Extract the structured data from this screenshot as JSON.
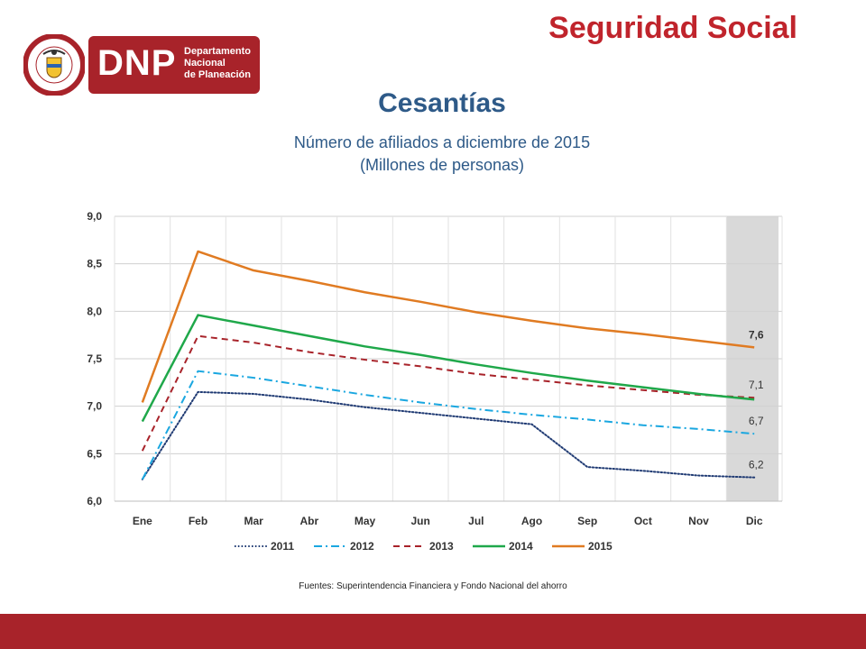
{
  "header": {
    "title": "Seguridad Social"
  },
  "logo": {
    "seal_text": "REPÚBLICA DE COLOMBIA",
    "acronym": "DNP",
    "name_lines": [
      "Departamento",
      "Nacional",
      "de Planeación"
    ]
  },
  "source": "Fuentes: Superintendencia Financiera y Fondo Nacional del ahorro",
  "colors": {
    "brand_red": "#a8232a",
    "title_blue": "#2e5a88"
  },
  "chart_data": {
    "type": "line",
    "title": "Cesantías",
    "subtitle_lines": [
      "Número de afiliados a diciembre de 2015",
      "(Millones de personas)"
    ],
    "xlabel": "",
    "ylabel": "",
    "categories": [
      "Ene",
      "Feb",
      "Mar",
      "Abr",
      "May",
      "Jun",
      "Jul",
      "Ago",
      "Sep",
      "Oct",
      "Nov",
      "Dic"
    ],
    "ylim": [
      6.0,
      9.0
    ],
    "yticks": [
      "6,0",
      "6,5",
      "7,0",
      "7,5",
      "8,0",
      "8,5",
      "9,0"
    ],
    "grid": true,
    "legend_position": "bottom",
    "highlight_category": "Dic",
    "series": [
      {
        "name": "2011",
        "color": "#1f3a73",
        "dash": "dotted",
        "values": [
          6.23,
          7.15,
          7.13,
          7.07,
          6.99,
          6.93,
          6.87,
          6.81,
          6.36,
          6.32,
          6.27,
          6.25
        ],
        "end_label": "6,2",
        "end_label_bold": false
      },
      {
        "name": "2012",
        "color": "#1aa7e0",
        "dash": "dashdot",
        "values": [
          6.23,
          7.37,
          7.3,
          7.21,
          7.12,
          7.04,
          6.97,
          6.91,
          6.86,
          6.8,
          6.76,
          6.71
        ],
        "end_label": "6,7",
        "end_label_bold": false
      },
      {
        "name": "2013",
        "color": "#a8232a",
        "dash": "dashed",
        "values": [
          6.53,
          7.74,
          7.67,
          7.57,
          7.49,
          7.42,
          7.34,
          7.28,
          7.22,
          7.17,
          7.12,
          7.09
        ],
        "end_label": "7,1",
        "end_label_bold": false
      },
      {
        "name": "2014",
        "color": "#1fa84a",
        "dash": "solid",
        "values": [
          6.84,
          7.96,
          7.85,
          7.74,
          7.63,
          7.54,
          7.44,
          7.35,
          7.27,
          7.2,
          7.13,
          7.07
        ],
        "end_label": "",
        "end_label_bold": false
      },
      {
        "name": "2015",
        "color": "#e07b22",
        "dash": "solid",
        "values": [
          7.04,
          8.63,
          8.43,
          8.32,
          8.2,
          8.1,
          7.99,
          7.9,
          7.82,
          7.76,
          7.69,
          7.62
        ],
        "end_label": "7,6",
        "end_label_bold": true
      }
    ]
  }
}
